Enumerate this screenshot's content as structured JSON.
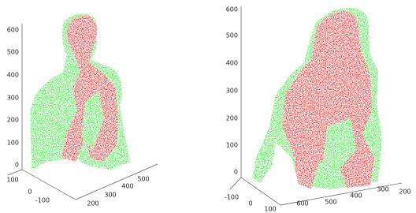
{
  "left_panel": {
    "vertical_ticks": [
      "600",
      "500",
      "400",
      "300",
      "200",
      "100",
      "0"
    ],
    "depth_ticks": [
      "100",
      "0",
      "-100"
    ],
    "width_ticks": [
      "200",
      "300",
      "400",
      "500"
    ]
  },
  "right_panel": {
    "vertical_ticks": [
      "600",
      "500",
      "400",
      "300",
      "200",
      "100",
      "0"
    ],
    "depth_ticks": [
      "-100",
      "0",
      "100"
    ],
    "width_ticks": [
      "600",
      "500",
      "400",
      "300",
      "200"
    ]
  }
}
